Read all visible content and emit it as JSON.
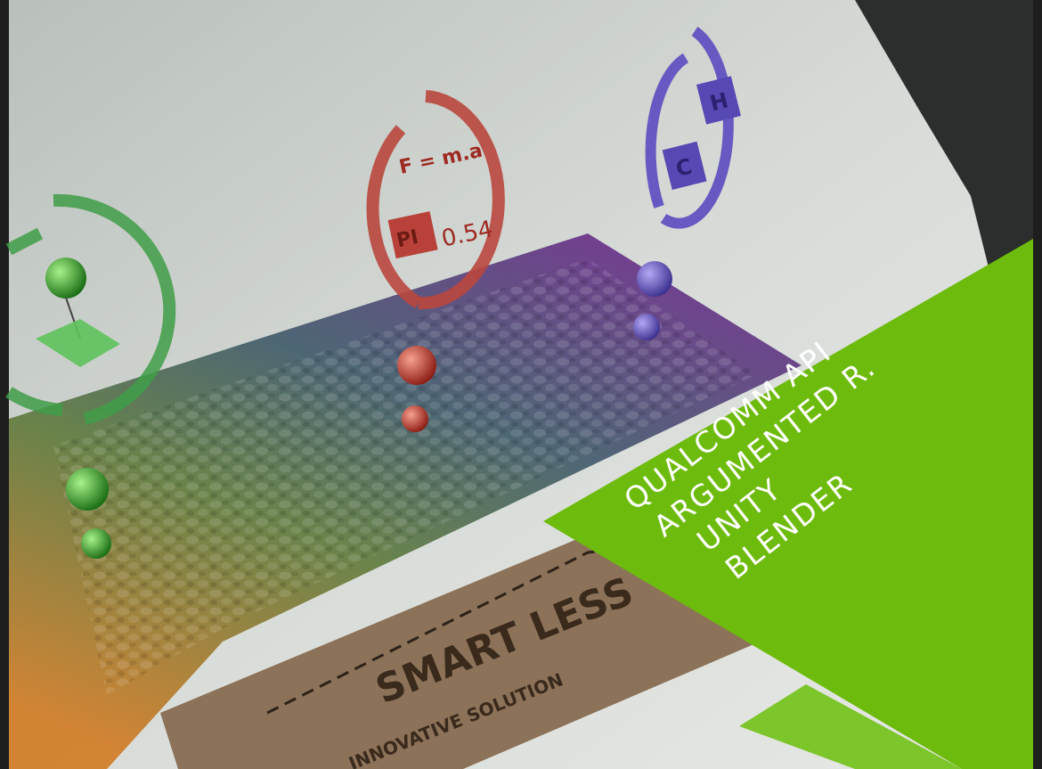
{
  "photo": {
    "box_label_main": "SMART LESS",
    "box_label_sub": "INNOVATIVE SOLUTION",
    "red_badge_formula": "F = m.a",
    "red_badge_value": "0.54",
    "red_badge_symbol": "PI",
    "blue_badge_symbols": [
      "H",
      "C"
    ]
  },
  "overlay": {
    "accent_color": "#6dbb0c",
    "lines": [
      "QUALCOMM API",
      "ARGUMENTED R.",
      "UNITY",
      "BLENDER"
    ]
  }
}
